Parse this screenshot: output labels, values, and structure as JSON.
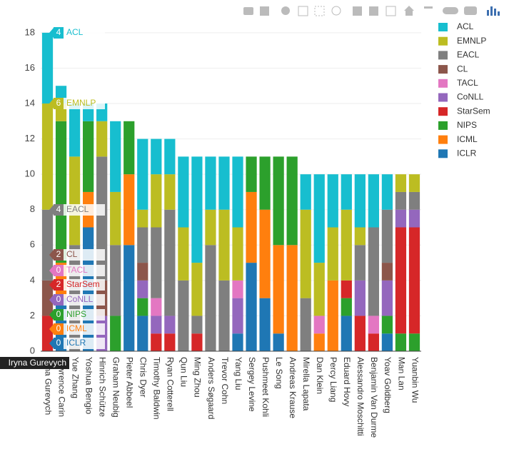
{
  "chart_data": {
    "type": "stacked_bar",
    "categories": [
      "Iryna Gurevych",
      "Lawrence Carin",
      "Yue Zhang",
      "Yoshua Bengio",
      "Hinrich Schütze",
      "Graham Neubig",
      "Pieter Abbeel",
      "Chris Dyer",
      "Timothy Baldwin",
      "Ryan Cotterell",
      "Qun Liu",
      "Ming Zhou",
      "Anders Søgaard",
      "Trevor Cohn",
      "Yang Liu",
      "Sergey Levine",
      "Pushmeet Kohli",
      "Le Song",
      "Andreas Krause",
      "Mirella Lapata",
      "Dan Klein",
      "Percy Liang",
      "Eduard Hovy",
      "Alessandro Moschitti",
      "Benjamin Van Durme",
      "Yoav Goldberg",
      "Man Lan",
      "Yuanbin Wu"
    ],
    "series": [
      {
        "name": "ICLR",
        "color": "#1f77b4",
        "values": [
          0,
          3,
          0,
          7,
          0,
          0,
          6,
          2,
          0,
          0,
          0,
          0,
          0,
          0,
          1,
          5,
          3,
          1,
          0,
          0,
          0,
          0,
          2,
          0,
          0,
          1,
          0,
          0
        ]
      },
      {
        "name": "ICML",
        "color": "#ff7f0e",
        "values": [
          0,
          2,
          0,
          2,
          0,
          0,
          4,
          0,
          0,
          0,
          0,
          0,
          0,
          0,
          0,
          4,
          5,
          5,
          6,
          0,
          1,
          4,
          0,
          0,
          0,
          0,
          0,
          0
        ]
      },
      {
        "name": "NIPS",
        "color": "#2ca02c",
        "values": [
          0,
          8,
          0,
          4,
          0,
          2,
          3,
          1,
          0,
          0,
          0,
          0,
          0,
          0,
          0,
          2,
          3,
          5,
          5,
          0,
          0,
          0,
          1,
          0,
          0,
          1,
          1,
          1
        ]
      },
      {
        "name": "StarSem",
        "color": "#d62728",
        "values": [
          2,
          0,
          0,
          0,
          0,
          0,
          0,
          0,
          1,
          1,
          0,
          1,
          0,
          0,
          0,
          0,
          0,
          0,
          0,
          0,
          0,
          0,
          1,
          2,
          1,
          0,
          6,
          6
        ]
      },
      {
        "name": "CoNLL",
        "color": "#9467bd",
        "values": [
          0,
          0,
          0,
          0,
          2,
          0,
          0,
          1,
          1,
          1,
          0,
          0,
          0,
          0,
          2,
          0,
          0,
          0,
          0,
          0,
          0,
          0,
          0,
          2,
          0,
          2,
          1,
          1
        ]
      },
      {
        "name": "TACL",
        "color": "#e377c2",
        "values": [
          0,
          0,
          0,
          0,
          0,
          0,
          0,
          0,
          1,
          0,
          0,
          0,
          0,
          0,
          1,
          0,
          0,
          0,
          0,
          0,
          1,
          0,
          0,
          0,
          1,
          0,
          0,
          0
        ]
      },
      {
        "name": "CL",
        "color": "#8c564b",
        "values": [
          2,
          0,
          0,
          0,
          2,
          0,
          0,
          1,
          0,
          0,
          0,
          0,
          0,
          0,
          0,
          0,
          0,
          0,
          0,
          0,
          0,
          0,
          0,
          0,
          0,
          1,
          0,
          0
        ]
      },
      {
        "name": "EACL",
        "color": "#7f7f7f",
        "values": [
          4,
          0,
          6,
          0,
          7,
          4,
          0,
          2,
          4,
          6,
          4,
          1,
          6,
          4,
          0,
          0,
          0,
          0,
          0,
          3,
          0,
          0,
          0,
          2,
          5,
          3,
          1,
          1
        ]
      },
      {
        "name": "EMNLP",
        "color": "#bcbd22",
        "values": [
          6,
          1,
          5,
          0,
          2,
          3,
          0,
          1,
          3,
          2,
          3,
          3,
          2,
          4,
          3,
          0,
          0,
          0,
          0,
          5,
          3,
          3,
          4,
          1,
          0,
          0,
          1,
          1
        ]
      },
      {
        "name": "ACL",
        "color": "#17becf",
        "values": [
          4,
          1,
          3,
          1,
          1,
          4,
          0,
          4,
          2,
          2,
          4,
          6,
          3,
          3,
          4,
          0,
          0,
          0,
          0,
          2,
          5,
          3,
          2,
          3,
          3,
          2,
          0,
          0
        ]
      }
    ],
    "ylim": [
      0,
      18.6
    ],
    "yticks": [
      0,
      2,
      4,
      6,
      8,
      10,
      12,
      14,
      16,
      18
    ],
    "grid": true,
    "legend": "top-right"
  }
}
